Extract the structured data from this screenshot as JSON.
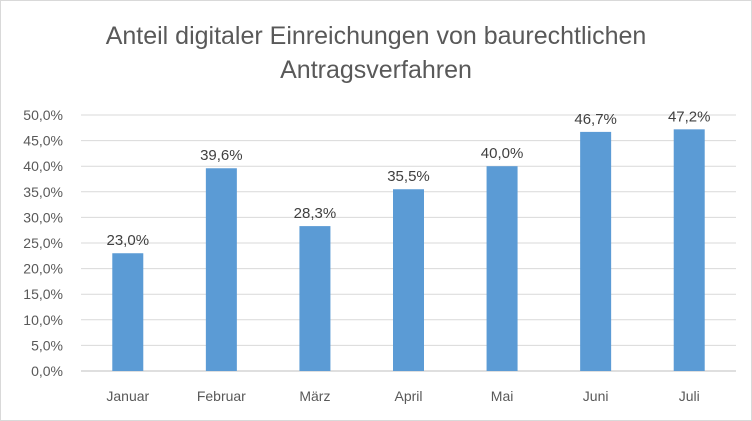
{
  "chart_data": {
    "type": "bar",
    "title_lines": [
      "Anteil digitaler Einreichungen von baurechtlichen",
      "Antragsverfahren"
    ],
    "categories": [
      "Januar",
      "Februar",
      "März",
      "April",
      "Mai",
      "Juni",
      "Juli"
    ],
    "values": [
      23.0,
      39.6,
      28.3,
      35.5,
      40.0,
      46.7,
      47.2
    ],
    "value_labels": [
      "23,0%",
      "39,6%",
      "28,3%",
      "35,5%",
      "40,0%",
      "46,7%",
      "47,2%"
    ],
    "y_ticks": [
      0,
      5,
      10,
      15,
      20,
      25,
      30,
      35,
      40,
      45,
      50
    ],
    "y_tick_labels": [
      "0,0%",
      "5,0%",
      "10,0%",
      "15,0%",
      "20,0%",
      "25,0%",
      "30,0%",
      "35,0%",
      "40,0%",
      "45,0%",
      "50,0%"
    ],
    "ylim": [
      0,
      50
    ],
    "grid": true,
    "legend": "none",
    "bar_color": "#5b9bd5",
    "grid_color": "#d9d9d9",
    "axis_color": "#bfbfbf"
  }
}
